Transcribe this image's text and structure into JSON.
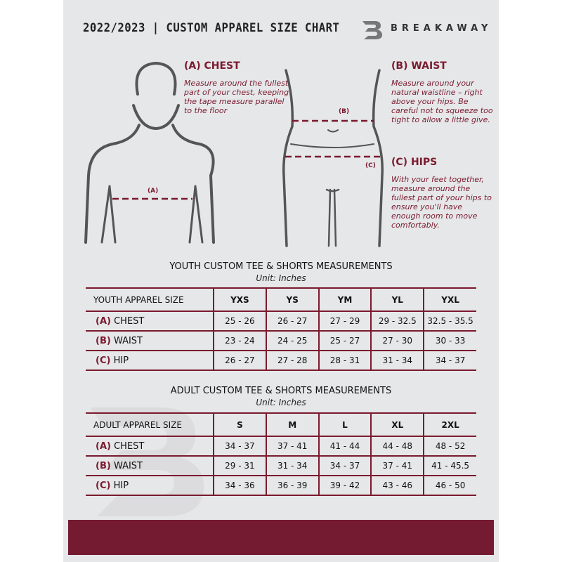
{
  "header": {
    "title": "2022/2023  |  CUSTOM APPAREL SIZE CHART",
    "brand": "BREAKAWAY",
    "logo_letter": "B"
  },
  "guide": {
    "chest": {
      "heading": "(A) CHEST",
      "text": "Measure around the fullest part of your chest, keeping the tape measure parallel to the floor",
      "label": "(A)"
    },
    "waist": {
      "heading": "(B) WAIST",
      "text": "Measure around your natural waistline – right above your hips. Be careful not to squeeze too tight to allow a little give.",
      "label": "(B)"
    },
    "hips": {
      "heading": "(C) HIPS",
      "text": "With your feet together, measure around the fullest part of your hips to ensure you'll have enough room to move comfortably.",
      "label": "(C)"
    }
  },
  "youth": {
    "title": "YOUTH CUSTOM TEE & SHORTS MEASUREMENTS",
    "unit": "Unit: Inches",
    "header": "YOUTH APPAREL SIZE",
    "sizes": [
      "YXS",
      "YS",
      "YM",
      "YL",
      "YXL"
    ],
    "rows": [
      {
        "letter": "(A)",
        "name": "CHEST",
        "values": [
          "25 - 26",
          "26 - 27",
          "27 - 29",
          "29 - 32.5",
          "32.5 - 35.5"
        ]
      },
      {
        "letter": "(B)",
        "name": "WAIST",
        "values": [
          "23 - 24",
          "24 - 25",
          "25 - 27",
          "27 - 30",
          "30 - 33"
        ]
      },
      {
        "letter": "(C)",
        "name": "HIP",
        "values": [
          "26 - 27",
          "27 - 28",
          "28 - 31",
          "31 - 34",
          "34 - 37"
        ]
      }
    ]
  },
  "adult": {
    "title": "ADULT CUSTOM TEE & SHORTS MEASUREMENTS",
    "unit": "Unit: Inches",
    "header": "ADULT APPAREL SIZE",
    "sizes": [
      "S",
      "M",
      "L",
      "XL",
      "2XL"
    ],
    "rows": [
      {
        "letter": "(A)",
        "name": "CHEST",
        "values": [
          "34 - 37",
          "37 - 41",
          "41 - 44",
          "44 - 48",
          "48 - 52"
        ]
      },
      {
        "letter": "(B)",
        "name": "WAIST",
        "values": [
          "29 - 31",
          "31 - 34",
          "34 - 37",
          "37 - 41",
          "41 - 45.5"
        ]
      },
      {
        "letter": "(C)",
        "name": "HIP",
        "values": [
          "34 - 36",
          "36 - 39",
          "39 - 42",
          "43 - 46",
          "46 - 50"
        ]
      }
    ]
  },
  "colors": {
    "accent": "#741b31",
    "background": "#e6e7e9",
    "figure": "#555555"
  }
}
